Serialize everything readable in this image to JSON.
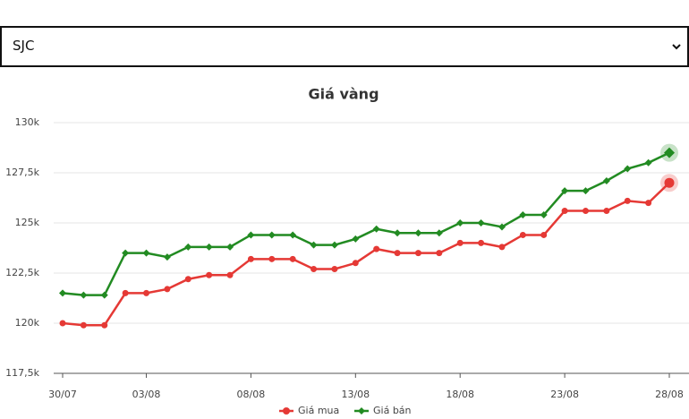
{
  "selector": {
    "selected": "SJC"
  },
  "chart_data": {
    "type": "line",
    "title": "Giá vàng",
    "categories": [
      "30/07",
      null,
      null,
      null,
      "03/08",
      null,
      null,
      null,
      null,
      "08/08",
      null,
      null,
      null,
      null,
      "13/08",
      null,
      null,
      null,
      null,
      "18/08",
      null,
      null,
      null,
      null,
      "23/08",
      null,
      null,
      null,
      null,
      "28/08"
    ],
    "series": [
      {
        "name": "Giá mua",
        "color": "#e53935",
        "marker": "circle",
        "values": [
          120000,
          119900,
          119900,
          121500,
          121500,
          121700,
          122200,
          122400,
          122400,
          123200,
          123200,
          123200,
          122700,
          122700,
          123000,
          123700,
          123500,
          123500,
          123500,
          124000,
          124000,
          123800,
          124400,
          124400,
          125600,
          125600,
          125600,
          126100,
          126000,
          127000
        ]
      },
      {
        "name": "Giá bán",
        "color": "#228b22",
        "marker": "diamond",
        "values": [
          121500,
          121400,
          121400,
          123500,
          123500,
          123300,
          123800,
          123800,
          123800,
          124400,
          124400,
          124400,
          123900,
          123900,
          124200,
          124700,
          124500,
          124500,
          124500,
          125000,
          125000,
          124800,
          125400,
          125400,
          126600,
          126600,
          127100,
          127700,
          128000,
          128500
        ]
      }
    ],
    "ylim": [
      117500,
      130000
    ],
    "yticks": [
      {
        "value": 117500,
        "label": "117,5k"
      },
      {
        "value": 120000,
        "label": "120k"
      },
      {
        "value": 122500,
        "label": "122,5k"
      },
      {
        "value": 125000,
        "label": "125k"
      },
      {
        "value": 127500,
        "label": "127,5k"
      },
      {
        "value": 130000,
        "label": "130k"
      }
    ],
    "grid": true,
    "legend": "bottom"
  }
}
